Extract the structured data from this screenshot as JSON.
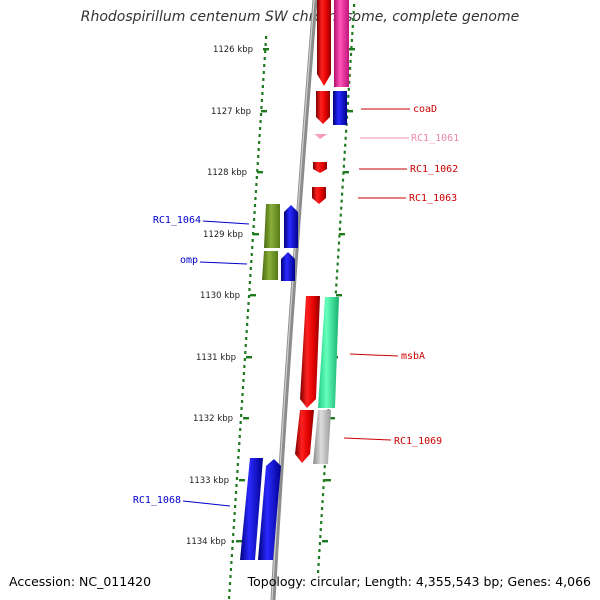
{
  "title": "Rhodospirillum centenum SW chromosome, complete genome",
  "footer": {
    "accession": "Accession: NC_011420",
    "summary": "Topology: circular; Length: 4,355,543 bp; Genes: 4,066"
  },
  "axis": {
    "unit": "kbp",
    "ticks": [
      {
        "label": "1126 kbp"
      },
      {
        "label": "1127 kbp"
      },
      {
        "label": "1128 kbp"
      },
      {
        "label": "1129 kbp"
      },
      {
        "label": "1130 kbp"
      },
      {
        "label": "1131 kbp"
      },
      {
        "label": "1132 kbp"
      },
      {
        "label": "1133 kbp"
      },
      {
        "label": "1134 kbp"
      }
    ]
  },
  "colors": {
    "backbone": "#8c8c8c",
    "dots": "#1f7a1f",
    "label_right": "#cc0000",
    "label_left": "#0000cc",
    "label_faded": "#ee88aa"
  },
  "genes": [
    {
      "name": "coaD",
      "color": "#cc0000"
    },
    {
      "name": "RC1_1061",
      "color": "#ee88aa"
    },
    {
      "name": "RC1_1062",
      "color": "#cc0000"
    },
    {
      "name": "RC1_1063",
      "color": "#cc0000"
    },
    {
      "name": "RC1_1064",
      "color": "#0000cc"
    },
    {
      "name": "omp",
      "color": "#0000cc"
    },
    {
      "name": "msbA",
      "color": "#cc0000"
    },
    {
      "name": "RC1_1069",
      "color": "#cc0000"
    },
    {
      "name": "RC1_1068",
      "color": "#0000cc"
    }
  ]
}
